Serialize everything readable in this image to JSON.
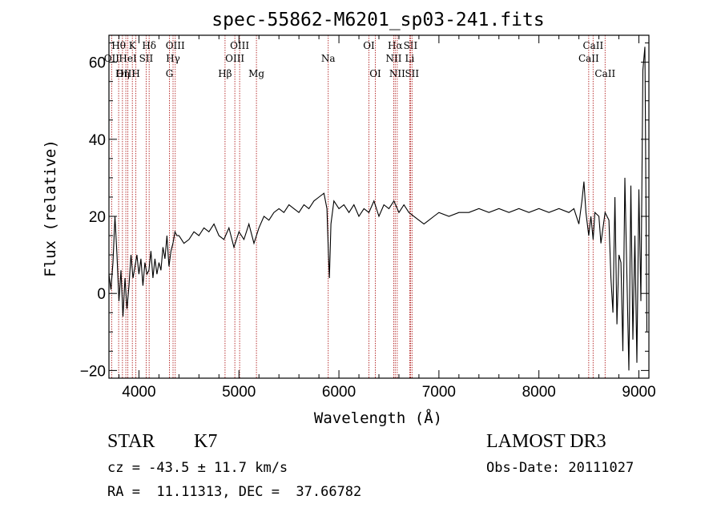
{
  "chart_data": {
    "type": "line",
    "title": "spec-55862-M6201_sp03-241.fits",
    "xlabel": "Wavelength (Å)",
    "ylabel": "Flux (relative)",
    "xlim": [
      3700,
      9100
    ],
    "ylim": [
      -22,
      67
    ],
    "xticks": [
      4000,
      5000,
      6000,
      7000,
      8000,
      9000
    ],
    "yticks": [
      -20,
      0,
      20,
      40,
      60
    ],
    "series": [
      {
        "name": "flux",
        "x": [
          3700,
          3720,
          3740,
          3760,
          3780,
          3800,
          3820,
          3840,
          3860,
          3880,
          3900,
          3920,
          3940,
          3960,
          3980,
          4000,
          4020,
          4040,
          4060,
          4080,
          4100,
          4120,
          4140,
          4160,
          4180,
          4200,
          4220,
          4240,
          4260,
          4280,
          4300,
          4320,
          4340,
          4360,
          4380,
          4400,
          4450,
          4500,
          4550,
          4600,
          4650,
          4700,
          4750,
          4800,
          4850,
          4900,
          4950,
          5000,
          5050,
          5100,
          5150,
          5200,
          5250,
          5300,
          5350,
          5400,
          5450,
          5500,
          5550,
          5600,
          5650,
          5700,
          5750,
          5800,
          5850,
          5880,
          5895,
          5905,
          5920,
          5950,
          6000,
          6050,
          6100,
          6150,
          6200,
          6250,
          6300,
          6350,
          6400,
          6450,
          6500,
          6550,
          6600,
          6650,
          6700,
          6750,
          6800,
          6850,
          6900,
          6950,
          7000,
          7100,
          7200,
          7300,
          7400,
          7500,
          7600,
          7700,
          7800,
          7900,
          8000,
          8100,
          8200,
          8300,
          8350,
          8400,
          8430,
          8450,
          8470,
          8498,
          8520,
          8542,
          8560,
          8600,
          8620,
          8662,
          8700,
          8720,
          8740,
          8760,
          8780,
          8800,
          8820,
          8840,
          8860,
          8880,
          8900,
          8920,
          8940,
          8960,
          8980,
          9000,
          9020,
          9040,
          9060,
          9080
        ],
        "values": [
          5,
          1,
          8,
          20,
          10,
          -2,
          6,
          -6,
          4,
          -4,
          2,
          10,
          4,
          7,
          10,
          5,
          9,
          2,
          8,
          5,
          6,
          11,
          4,
          9,
          5,
          8,
          6,
          12,
          9,
          15,
          7,
          11,
          13,
          16,
          15,
          15,
          13,
          14,
          16,
          15,
          17,
          16,
          18,
          15,
          14,
          17,
          12,
          16,
          14,
          18,
          13,
          17,
          20,
          19,
          21,
          22,
          21,
          23,
          22,
          21,
          23,
          22,
          24,
          25,
          26,
          22,
          10,
          4,
          18,
          24,
          22,
          23,
          21,
          23,
          20,
          22,
          21,
          24,
          20,
          23,
          22,
          24,
          21,
          23,
          21,
          20,
          19,
          18,
          19,
          20,
          21,
          20,
          21,
          21,
          22,
          21,
          22,
          21,
          22,
          21,
          22,
          21,
          22,
          21,
          22,
          18,
          24,
          29,
          21,
          15,
          20,
          14,
          21,
          20,
          13,
          21,
          19,
          4,
          -5,
          25,
          -8,
          10,
          8,
          -15,
          30,
          5,
          -20,
          28,
          -12,
          15,
          -18,
          27,
          -2,
          58,
          64,
          -10
        ]
      }
    ],
    "lines": [
      {
        "name": "Hθ",
        "x": 3797,
        "row": 1
      },
      {
        "name": "OII",
        "x": 3727,
        "row": 2
      },
      {
        "name": "OIII",
        "x": 3869,
        "row": 3
      },
      {
        "name": "Hη",
        "x": 3835,
        "row": 3
      },
      {
        "name": "K",
        "x": 3934,
        "row": 1
      },
      {
        "name": "HeI",
        "x": 3889,
        "row": 2
      },
      {
        "name": "H",
        "x": 3969,
        "row": 3
      },
      {
        "name": "SII",
        "x": 4072,
        "row": 2
      },
      {
        "name": "Hδ",
        "x": 4102,
        "row": 1
      },
      {
        "name": "OIII",
        "x": 4363,
        "row": 1
      },
      {
        "name": "Hγ",
        "x": 4341,
        "row": 2
      },
      {
        "name": "G",
        "x": 4305,
        "row": 3
      },
      {
        "name": "Hβ",
        "x": 4861,
        "row": 3
      },
      {
        "name": "OIII",
        "x": 5007,
        "row": 1
      },
      {
        "name": "OIII",
        "x": 4959,
        "row": 2
      },
      {
        "name": "Mg",
        "x": 5175,
        "row": 3
      },
      {
        "name": "Na",
        "x": 5893,
        "row": 2
      },
      {
        "name": "OI",
        "x": 6300,
        "row": 1
      },
      {
        "name": "OI",
        "x": 6364,
        "row": 3
      },
      {
        "name": "Hα",
        "x": 6563,
        "row": 1
      },
      {
        "name": "NII",
        "x": 6548,
        "row": 2
      },
      {
        "name": "NII",
        "x": 6583,
        "row": 3
      },
      {
        "name": "SII",
        "x": 6716,
        "row": 1
      },
      {
        "name": "SII",
        "x": 6731,
        "row": 3
      },
      {
        "name": "Li",
        "x": 6708,
        "row": 2
      },
      {
        "name": "CaII",
        "x": 8542,
        "row": 1
      },
      {
        "name": "CaII",
        "x": 8498,
        "row": 2
      },
      {
        "name": "CaII",
        "x": 8662,
        "row": 3
      }
    ]
  },
  "info": {
    "obj_class": "STAR",
    "subclass": "K7",
    "survey": "LAMOST DR3",
    "cz": "cz = -43.5 ± 11.7 km/s",
    "obs_date": "Obs-Date: 20111027",
    "coords": "RA =  11.11313, DEC =  37.66782"
  }
}
